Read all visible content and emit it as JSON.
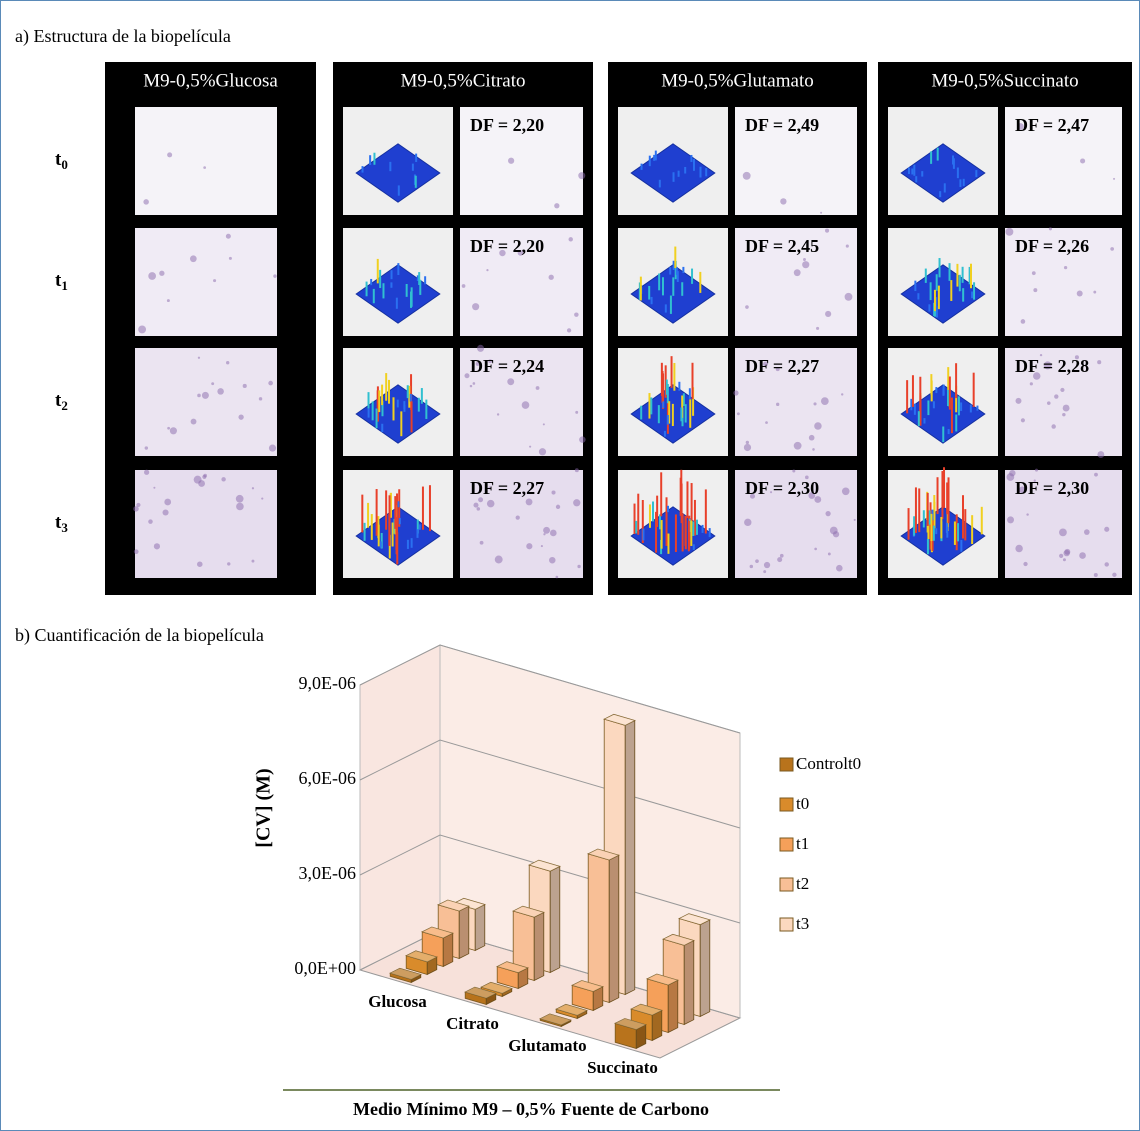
{
  "panel_a": {
    "title": "a) Estructura de la biopelícula",
    "rows": [
      {
        "base": "t",
        "sub": "0"
      },
      {
        "base": "t",
        "sub": "1"
      },
      {
        "base": "t",
        "sub": "2"
      },
      {
        "base": "t",
        "sub": "3"
      }
    ],
    "columns": [
      {
        "header": "M9-0,5%Glucosa"
      },
      {
        "header": "M9-0,5%Citrato",
        "df": [
          "DF = 2,20",
          "DF = 2,20",
          "DF = 2,24",
          "DF = 2,27"
        ]
      },
      {
        "header": "M9-0,5%Glutamato",
        "df": [
          "DF = 2,49",
          "DF = 2,45",
          "DF = 2,27",
          "DF = 2,30"
        ]
      },
      {
        "header": "M9-0,5%Succinato",
        "df": [
          "DF = 2,47",
          "DF = 2,26",
          "DF = 2,28",
          "DF = 2,30"
        ]
      }
    ]
  },
  "chart_data": {
    "type": "bar3d",
    "title": "b) Cuantificación de la biopelícula",
    "ylabel": "[CV] (M)",
    "xlabel": "Medio Mínimo M9 – 0,5% Fuente de Carbono",
    "categories": [
      "Glucosa",
      "Citrato",
      "Glutamato",
      "Succinato"
    ],
    "series": [
      {
        "name": "Controlt0",
        "color": "#b8731c",
        "values": [
          1e-07,
          2e-07,
          5e-08,
          6e-07
        ]
      },
      {
        "name": "t0",
        "color": "#d98b2b",
        "values": [
          4e-07,
          1e-07,
          1e-07,
          8e-07
        ]
      },
      {
        "name": "t1",
        "color": "#f5a05a",
        "values": [
          9e-07,
          5e-07,
          6e-07,
          1.5e-06
        ]
      },
      {
        "name": "t2",
        "color": "#f8bf96",
        "values": [
          1.5e-06,
          2e-06,
          4.5e-06,
          2.5e-06
        ]
      },
      {
        "name": "t3",
        "color": "#fbd8bf",
        "values": [
          1.3e-06,
          3.2e-06,
          8.5e-06,
          2.9e-06
        ]
      }
    ],
    "ylim": [
      0,
      9e-06
    ],
    "yticks": [
      {
        "value": 0,
        "label": "0,0E+00"
      },
      {
        "value": 3e-06,
        "label": "3,0E-06"
      },
      {
        "value": 6e-06,
        "label": "6,0E-06"
      },
      {
        "value": 9e-06,
        "label": "9,0E-06"
      }
    ]
  }
}
